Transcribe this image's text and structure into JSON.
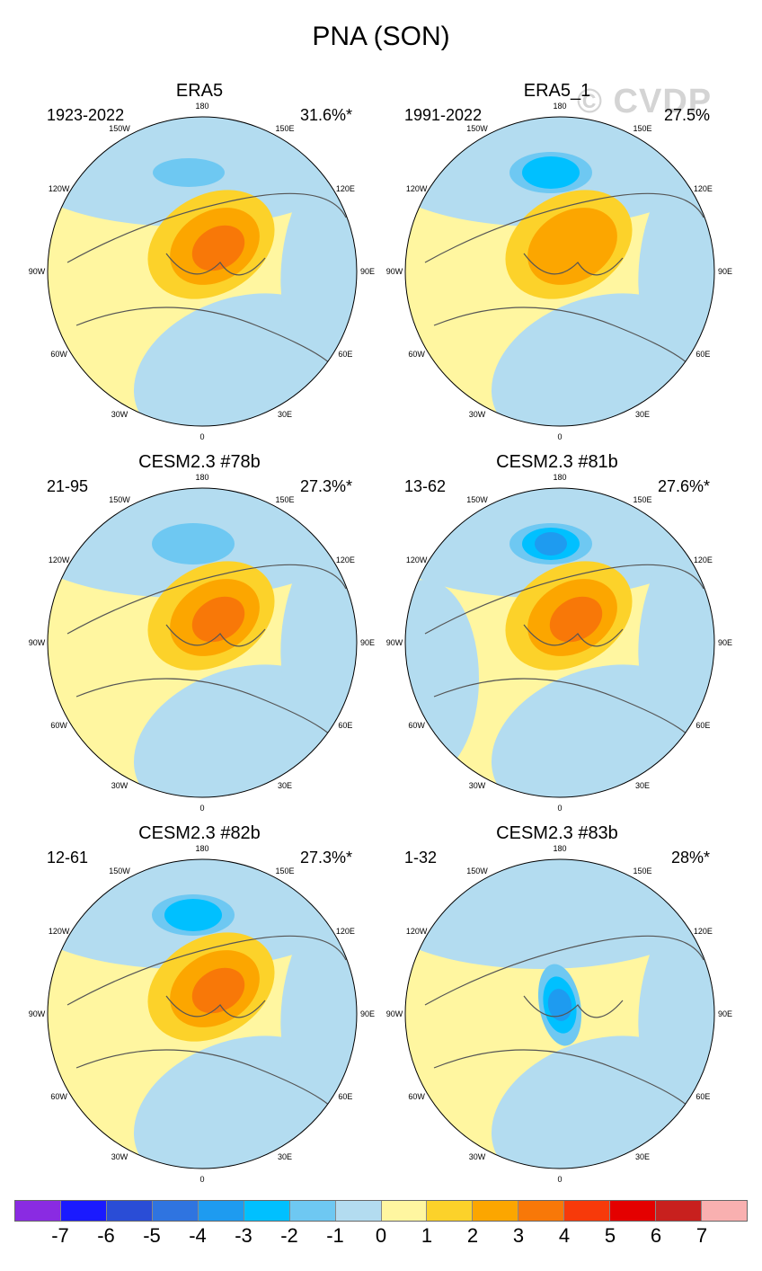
{
  "page_title": "PNA (SON)",
  "watermark": "© CVDP",
  "lon_labels": {
    "top": "180",
    "upper_left": "150W",
    "upper_right": "150E",
    "mid_upper_left": "120W",
    "mid_upper_right": "120E",
    "left": "90W",
    "right": "90E",
    "mid_lower_left": "60W",
    "mid_lower_right": "60E",
    "lower_left": "30W",
    "lower_right": "30E",
    "bottom": "0"
  },
  "panels": [
    {
      "title": "ERA5",
      "years": "1923-2022",
      "percent": "31.6%*",
      "center_max": 3,
      "center_min": null
    },
    {
      "title": "ERA5_1",
      "years": "1991-2022",
      "percent": "27.5%",
      "center_max": 2,
      "center_min": -3
    },
    {
      "title": "CESM2.3 #78b",
      "years": "21-95",
      "percent": "27.3%*",
      "center_max": 3,
      "center_min": -2
    },
    {
      "title": "CESM2.3 #81b",
      "years": "13-62",
      "percent": "27.6%*",
      "center_max": 3,
      "center_min": -4
    },
    {
      "title": "CESM2.3 #82b",
      "years": "12-61",
      "percent": "27.3%*",
      "center_max": 3,
      "center_min": -3
    },
    {
      "title": "CESM2.3 #83b",
      "years": "1-32",
      "percent": "28%*",
      "center_max": 1,
      "center_min": -4
    }
  ],
  "colorbar": {
    "colors": [
      "#8a2be2",
      "#1a1aff",
      "#2a4dd6",
      "#2f74e0",
      "#1e9bf0",
      "#00c0ff",
      "#6ec8f2",
      "#b3dcf0",
      "#fff6a0",
      "#fcd22a",
      "#fca600",
      "#f87808",
      "#f73a0a",
      "#e40000",
      "#c8201e",
      "#f9b0b0"
    ],
    "ticks": [
      "-7",
      "-6",
      "-5",
      "-4",
      "-3",
      "-2",
      "-1",
      "0",
      "1",
      "2",
      "3",
      "4",
      "5",
      "6",
      "7"
    ]
  }
}
